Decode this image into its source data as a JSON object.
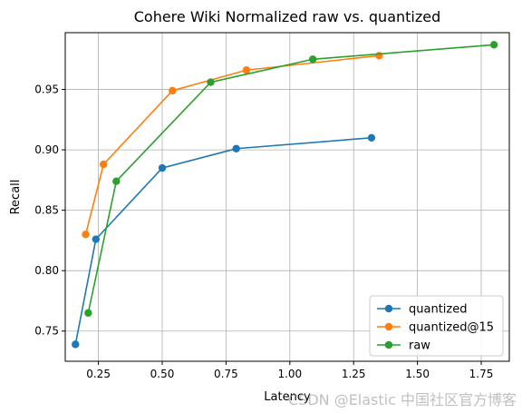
{
  "chart_data": {
    "type": "line",
    "title": "Cohere Wiki Normalized raw vs. quantized",
    "xlabel": "Latency",
    "ylabel": "Recall",
    "xlim": [
      0.12,
      1.86
    ],
    "ylim": [
      0.725,
      0.997
    ],
    "xticks": [
      0.25,
      0.5,
      0.75,
      1.0,
      1.25,
      1.5,
      1.75
    ],
    "xtick_labels": [
      "0.25",
      "0.50",
      "0.75",
      "1.00",
      "1.25",
      "1.50",
      "1.75"
    ],
    "yticks": [
      0.75,
      0.8,
      0.85,
      0.9,
      0.95
    ],
    "ytick_labels": [
      "0.75",
      "0.80",
      "0.85",
      "0.90",
      "0.95"
    ],
    "grid": true,
    "legend_position": "lower-right",
    "series": [
      {
        "name": "quantized",
        "color": "#1f77b4",
        "points": [
          [
            0.16,
            0.739
          ],
          [
            0.24,
            0.826
          ],
          [
            0.5,
            0.885
          ],
          [
            0.79,
            0.901
          ],
          [
            1.32,
            0.91
          ]
        ]
      },
      {
        "name": "quantized@15",
        "color": "#ff7f0e",
        "points": [
          [
            0.2,
            0.83
          ],
          [
            0.27,
            0.888
          ],
          [
            0.54,
            0.949
          ],
          [
            0.83,
            0.966
          ],
          [
            1.35,
            0.978
          ]
        ]
      },
      {
        "name": "raw",
        "color": "#2ca02c",
        "points": [
          [
            0.21,
            0.765
          ],
          [
            0.32,
            0.874
          ],
          [
            0.69,
            0.956
          ],
          [
            1.09,
            0.975
          ],
          [
            1.8,
            0.987
          ]
        ]
      }
    ]
  },
  "watermark": "CSDN @Elastic 中国社区官方博客"
}
